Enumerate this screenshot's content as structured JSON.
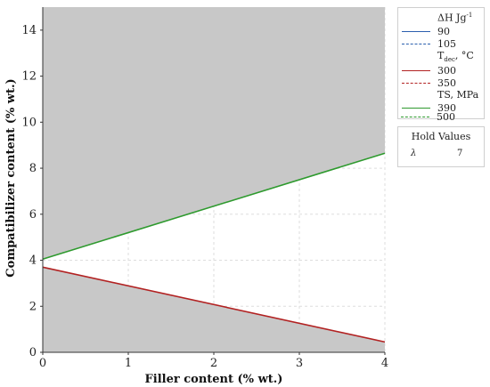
{
  "chart_data": {
    "type": "line",
    "xlabel": "Filler content (% wt.)",
    "ylabel": "Compatibilizer content (% wt.)",
    "xlim": [
      0,
      4
    ],
    "ylim": [
      0,
      15
    ],
    "xticks": [
      0,
      1,
      2,
      3,
      4
    ],
    "yticks": [
      0,
      2,
      4,
      6,
      8,
      10,
      12,
      14
    ],
    "grid": true,
    "shading": "infeasible regions shaded gray above the green line and below the red line",
    "shade_color": "#c8c8c8",
    "series": [
      {
        "name": "300",
        "color": "#b22222",
        "style": "solid",
        "x": [
          0,
          4
        ],
        "y": [
          3.7,
          0.45
        ]
      },
      {
        "name": "390",
        "color": "#2e9a2e",
        "style": "solid",
        "x": [
          0,
          4
        ],
        "y": [
          4.05,
          8.65
        ]
      }
    ],
    "legend": {
      "placement": "right",
      "groups": [
        {
          "header_main": "ΔH Jg",
          "header_sup": "-1",
          "items": [
            {
              "label": "90",
              "color": "#2b5fae",
              "style": "solid"
            },
            {
              "label": "105",
              "color": "#2b5fae",
              "style": "dashed"
            }
          ]
        },
        {
          "header_main": "T",
          "header_sub": "dec",
          "header_rest": ", °C",
          "items": [
            {
              "label": "300",
              "color": "#b22222",
              "style": "solid"
            },
            {
              "label": "350",
              "color": "#b22222",
              "style": "dashed"
            }
          ]
        },
        {
          "header_main": "TS, MPa",
          "items": [
            {
              "label": "390",
              "color": "#2e9a2e",
              "style": "solid"
            },
            {
              "label": "500",
              "color": "#2e9a2e",
              "style": "dashed"
            }
          ]
        }
      ]
    },
    "hold_values": {
      "title": "Hold Values",
      "param": "λ",
      "value": "7"
    }
  }
}
